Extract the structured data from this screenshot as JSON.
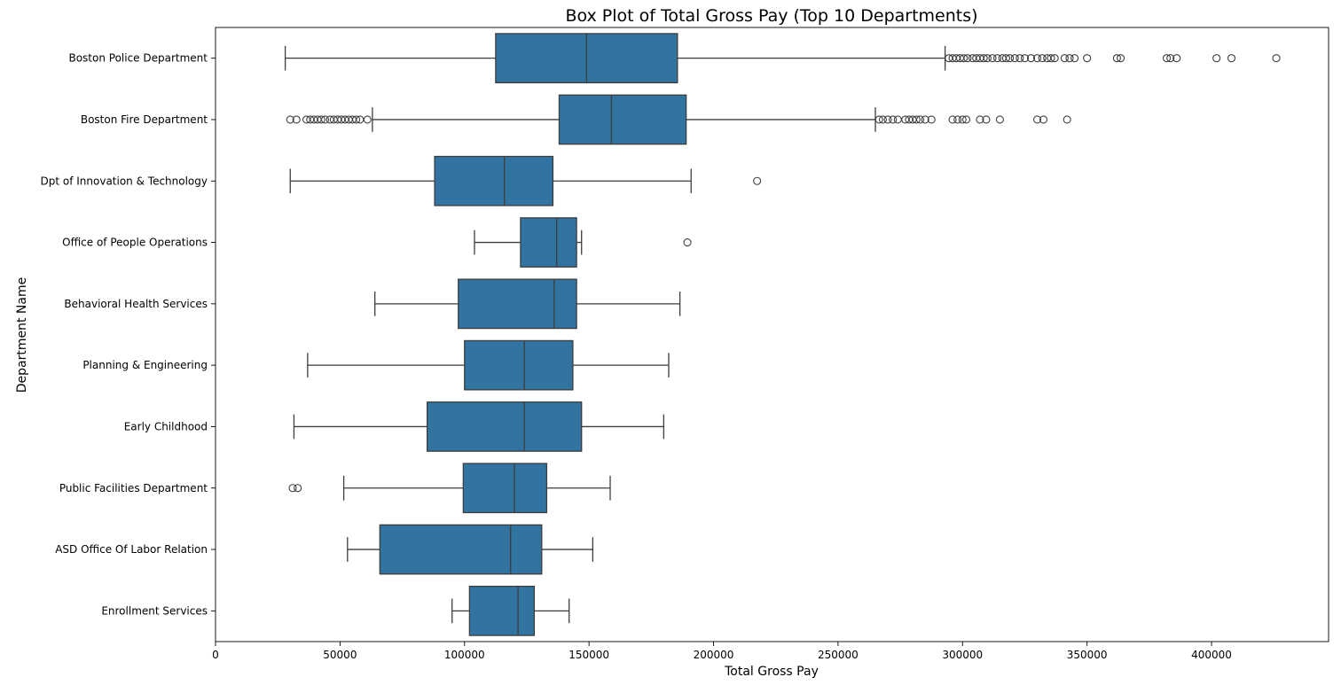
{
  "chart_data": {
    "type": "box",
    "orientation": "horizontal",
    "title": "Box Plot of Total Gross Pay (Top 10 Departments)",
    "xlabel": "Total Gross Pay",
    "ylabel": "Department Name",
    "xlim": [
      0,
      447000
    ],
    "xticks": [
      0,
      50000,
      100000,
      150000,
      200000,
      250000,
      300000,
      350000,
      400000
    ],
    "grid": false,
    "box_color": "#3274a1",
    "line_color": "#3d3d3d",
    "categories": [
      "Boston Police Department",
      "Boston Fire Department",
      "Dpt of Innovation & Technology",
      "Office of People Operations",
      "Behavioral Health Services",
      "Planning & Engineering",
      "Early Childhood",
      "Public Facilities Department",
      "ASD Office Of Labor Relation",
      "Enrollment Services"
    ],
    "boxes": [
      {
        "whisker_low": 28000,
        "q1": 112500,
        "median": 149000,
        "q3": 185500,
        "whisker_high": 293000,
        "outliers": [
          294500,
          296000,
          297500,
          299000,
          300500,
          302000,
          304000,
          305500,
          307000,
          308500,
          310000,
          312000,
          314000,
          316000,
          317500,
          319000,
          321000,
          323000,
          325000,
          327500,
          330000,
          332000,
          334000,
          335500,
          337000,
          341000,
          343000,
          345000,
          350000,
          362000,
          363500,
          382000,
          383500,
          386000,
          402000,
          408000,
          426000
        ]
      },
      {
        "whisker_low": 63000,
        "q1": 138000,
        "median": 159000,
        "q3": 189000,
        "whisker_high": 265000,
        "outliers": [
          30000,
          32500,
          36500,
          38000,
          39500,
          41000,
          42500,
          44000,
          46000,
          47500,
          49000,
          50500,
          52000,
          53500,
          55000,
          56500,
          58000,
          61000,
          266500,
          268000,
          270000,
          272000,
          274000,
          277000,
          278500,
          280000,
          281500,
          283000,
          285000,
          287500,
          296000,
          298000,
          300000,
          301500,
          307000,
          309500,
          315000,
          330000,
          332500,
          342000
        ]
      },
      {
        "whisker_low": 30000,
        "q1": 88000,
        "median": 116000,
        "q3": 135500,
        "whisker_high": 191000,
        "outliers": [
          217500
        ]
      },
      {
        "whisker_low": 104000,
        "q1": 122500,
        "median": 137000,
        "q3": 145000,
        "whisker_high": 147000,
        "outliers": [
          189500
        ]
      },
      {
        "whisker_low": 64000,
        "q1": 97500,
        "median": 136000,
        "q3": 145000,
        "whisker_high": 186500,
        "outliers": []
      },
      {
        "whisker_low": 37000,
        "q1": 100000,
        "median": 124000,
        "q3": 143500,
        "whisker_high": 182000,
        "outliers": []
      },
      {
        "whisker_low": 31500,
        "q1": 85000,
        "median": 124000,
        "q3": 147000,
        "whisker_high": 180000,
        "outliers": []
      },
      {
        "whisker_low": 51500,
        "q1": 99500,
        "median": 120000,
        "q3": 133000,
        "whisker_high": 158500,
        "outliers": [
          31000,
          33000
        ]
      },
      {
        "whisker_low": 53000,
        "q1": 66000,
        "median": 118500,
        "q3": 131000,
        "whisker_high": 151500,
        "outliers": []
      },
      {
        "whisker_low": 95000,
        "q1": 102000,
        "median": 121500,
        "q3": 128000,
        "whisker_high": 142000,
        "outliers": []
      }
    ]
  }
}
